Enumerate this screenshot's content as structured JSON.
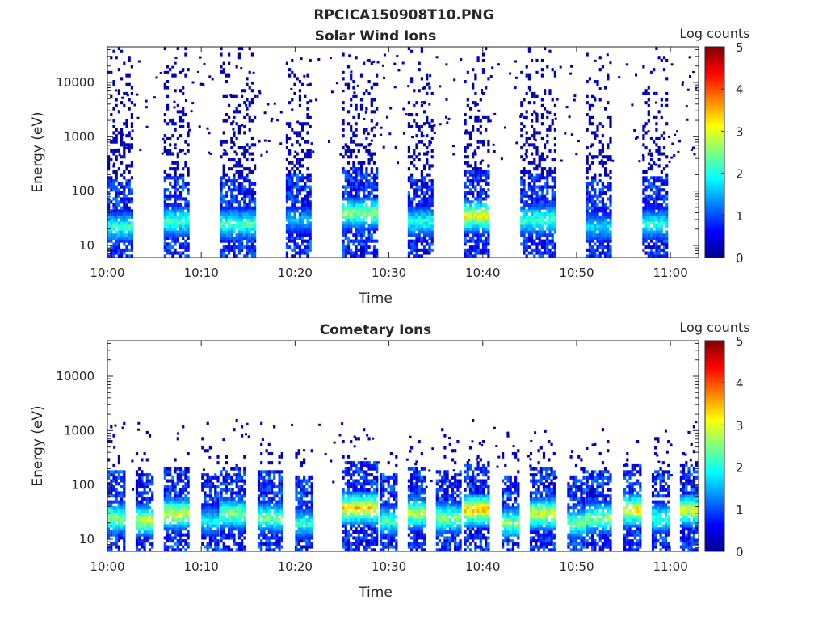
{
  "figure_title": "RPCICA150908T10.PNG",
  "colormap": [
    "#00008f",
    "#0000ff",
    "#0080ff",
    "#00ffff",
    "#80ff80",
    "#ffff00",
    "#ff8000",
    "#ff0000",
    "#800000"
  ],
  "chart_data": [
    {
      "type": "heatmap",
      "title": "Solar Wind Ions",
      "xlabel": "Time",
      "ylabel": "Energy (eV)",
      "x_range": [
        "10:00",
        "11:03"
      ],
      "x_ticks": [
        "10:00",
        "10:10",
        "10:20",
        "10:30",
        "10:40",
        "10:50",
        "11:00"
      ],
      "y_scale": "log",
      "y_range": [
        6,
        45000
      ],
      "y_ticks": [
        "10",
        "100",
        "1000",
        "10000"
      ],
      "colorbar_label": "Log counts",
      "colorbar_range": [
        0,
        5
      ],
      "colorbar_ticks": [
        "0",
        "1",
        "2",
        "3",
        "4",
        "5"
      ],
      "grid": false,
      "bursts": [
        {
          "start": "10:00",
          "end": "10:02",
          "peak_energy_eV": 22,
          "peak_log_counts": 2.5
        },
        {
          "start": "10:06",
          "end": "10:08",
          "peak_energy_eV": 28,
          "peak_log_counts": 2.6
        },
        {
          "start": "10:12",
          "end": "10:15",
          "peak_energy_eV": 25,
          "peak_log_counts": 2.6
        },
        {
          "start": "10:19",
          "end": "10:21",
          "peak_energy_eV": 30,
          "peak_log_counts": 1.8
        },
        {
          "start": "10:25",
          "end": "10:28",
          "peak_energy_eV": 40,
          "peak_log_counts": 3.0
        },
        {
          "start": "10:32",
          "end": "10:34",
          "peak_energy_eV": 28,
          "peak_log_counts": 2.4
        },
        {
          "start": "10:38",
          "end": "10:40",
          "peak_energy_eV": 35,
          "peak_log_counts": 3.5
        },
        {
          "start": "10:44",
          "end": "10:47",
          "peak_energy_eV": 30,
          "peak_log_counts": 2.6
        },
        {
          "start": "10:51",
          "end": "10:53",
          "peak_energy_eV": 22,
          "peak_log_counts": 2.0
        },
        {
          "start": "10:57",
          "end": "10:59",
          "peak_energy_eV": 25,
          "peak_log_counts": 2.4
        }
      ]
    },
    {
      "type": "heatmap",
      "title": "Cometary Ions",
      "xlabel": "Time",
      "ylabel": "Energy (eV)",
      "x_range": [
        "10:00",
        "11:03"
      ],
      "x_ticks": [
        "10:00",
        "10:10",
        "10:20",
        "10:30",
        "10:40",
        "10:50",
        "11:00"
      ],
      "y_scale": "log",
      "y_range": [
        6,
        45000
      ],
      "y_ticks": [
        "10",
        "100",
        "1000",
        "10000"
      ],
      "colorbar_label": "Log counts",
      "colorbar_range": [
        0,
        5
      ],
      "colorbar_ticks": [
        "0",
        "1",
        "2",
        "3",
        "4",
        "5"
      ],
      "grid": false,
      "bursts": [
        {
          "start": "10:00",
          "end": "10:01",
          "peak_energy_eV": 25,
          "peak_log_counts": 3.0
        },
        {
          "start": "10:03",
          "end": "10:04",
          "peak_energy_eV": 22,
          "peak_log_counts": 3.3
        },
        {
          "start": "10:06",
          "end": "10:08",
          "peak_energy_eV": 30,
          "peak_log_counts": 3.4
        },
        {
          "start": "10:10",
          "end": "10:11",
          "peak_energy_eV": 22,
          "peak_log_counts": 2.2
        },
        {
          "start": "10:12",
          "end": "10:14",
          "peak_energy_eV": 30,
          "peak_log_counts": 3.0
        },
        {
          "start": "10:16",
          "end": "10:18",
          "peak_energy_eV": 25,
          "peak_log_counts": 2.8
        },
        {
          "start": "10:20",
          "end": "10:21",
          "peak_energy_eV": 20,
          "peak_log_counts": 2.4
        },
        {
          "start": "10:25",
          "end": "10:28",
          "peak_energy_eV": 38,
          "peak_log_counts": 3.8
        },
        {
          "start": "10:29",
          "end": "10:30",
          "peak_energy_eV": 22,
          "peak_log_counts": 2.6
        },
        {
          "start": "10:32",
          "end": "10:33",
          "peak_energy_eV": 30,
          "peak_log_counts": 3.3
        },
        {
          "start": "10:35",
          "end": "10:37",
          "peak_energy_eV": 25,
          "peak_log_counts": 3.0
        },
        {
          "start": "10:38",
          "end": "10:40",
          "peak_energy_eV": 35,
          "peak_log_counts": 4.0
        },
        {
          "start": "10:42",
          "end": "10:43",
          "peak_energy_eV": 20,
          "peak_log_counts": 3.0
        },
        {
          "start": "10:45",
          "end": "10:47",
          "peak_energy_eV": 30,
          "peak_log_counts": 3.5
        },
        {
          "start": "10:49",
          "end": "10:50",
          "peak_energy_eV": 20,
          "peak_log_counts": 2.8
        },
        {
          "start": "10:51",
          "end": "10:53",
          "peak_energy_eV": 25,
          "peak_log_counts": 3.0
        },
        {
          "start": "10:55",
          "end": "10:56",
          "peak_energy_eV": 35,
          "peak_log_counts": 3.7
        },
        {
          "start": "10:58",
          "end": "10:59",
          "peak_energy_eV": 25,
          "peak_log_counts": 2.6
        },
        {
          "start": "11:01",
          "end": "11:02",
          "peak_energy_eV": 35,
          "peak_log_counts": 3.5
        }
      ]
    }
  ]
}
